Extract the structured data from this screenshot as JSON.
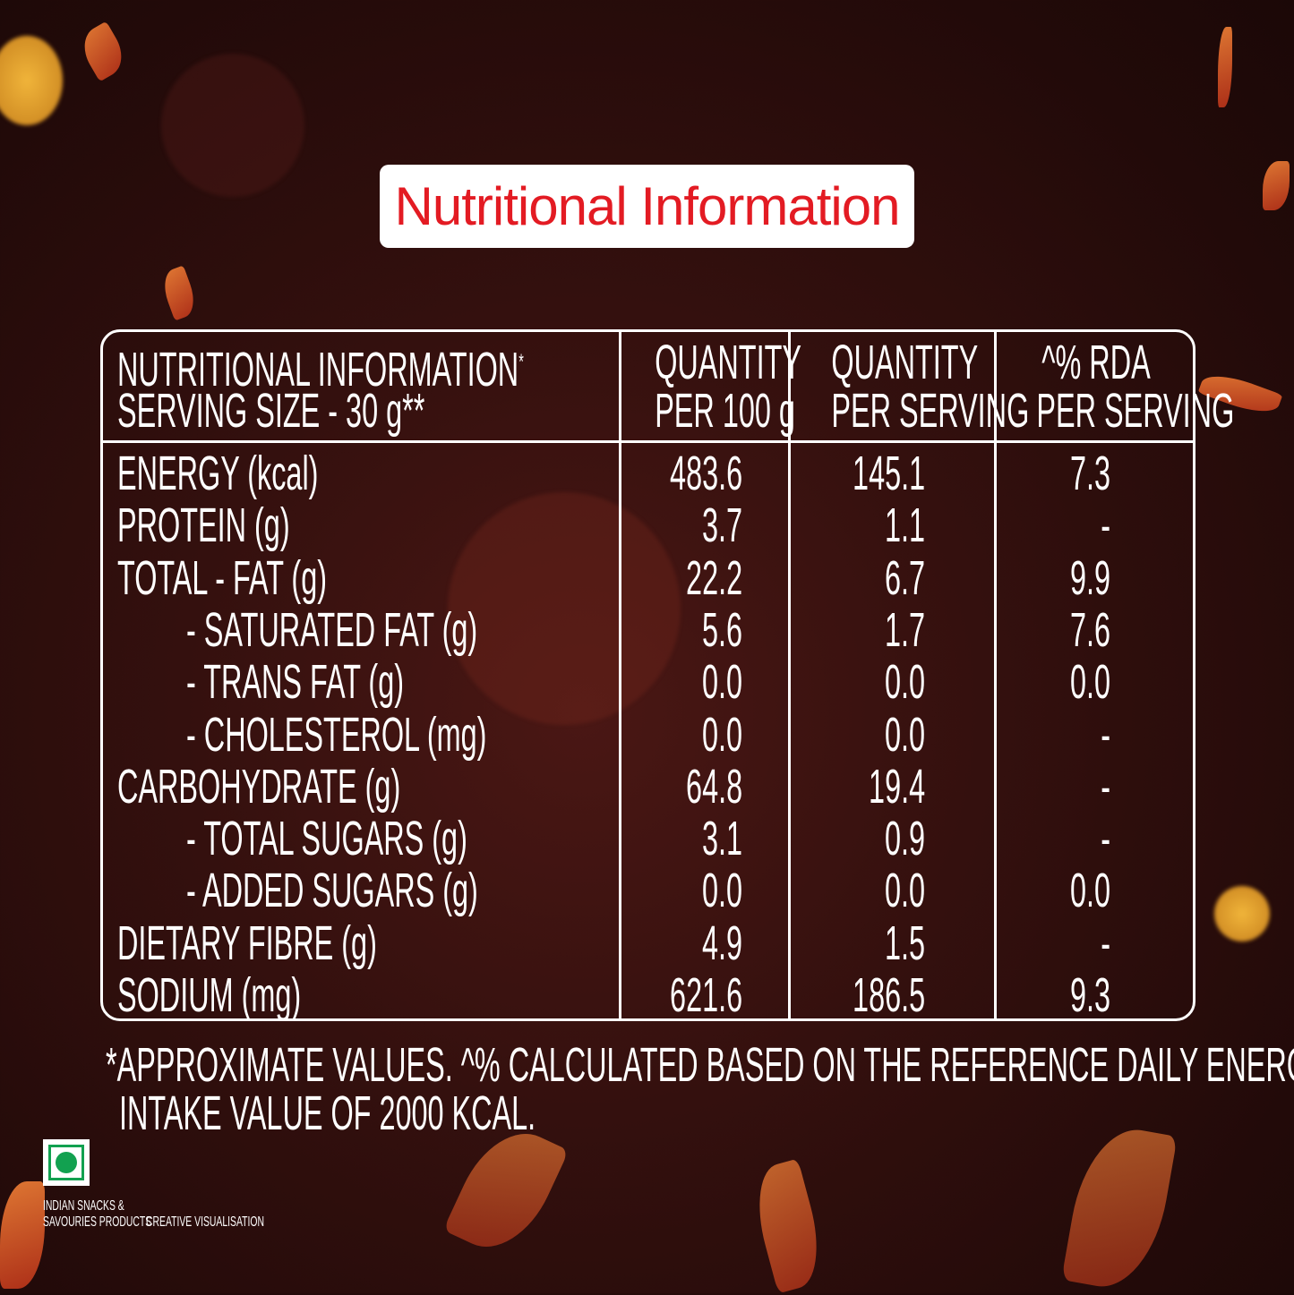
{
  "title": "Nutritional Information",
  "table": {
    "header": {
      "col1_line1": "NUTRITIONAL INFORMATION",
      "col1_sup": "*",
      "col1_line2": "SERVING SIZE - 30 g**",
      "col2_line1": "QUANTITY",
      "col2_line2": "PER 100 g",
      "col3_line1": "QUANTITY",
      "col3_line2": "PER SERVING",
      "col4_line1": "^% RDA",
      "col4_line2": "PER SERVING"
    },
    "rows": [
      {
        "label": "ENERGY (kcal)",
        "indent": false,
        "per100": "483.6",
        "serving": "145.1",
        "rda": "7.3"
      },
      {
        "label": "PROTEIN (g)",
        "indent": false,
        "per100": "3.7",
        "serving": "1.1",
        "rda": "-"
      },
      {
        "label": "TOTAL - FAT  (g)",
        "indent": false,
        "per100": "22.2",
        "serving": "6.7",
        "rda": "9.9"
      },
      {
        "label": "- SATURATED FAT (g)",
        "indent": true,
        "per100": "5.6",
        "serving": "1.7",
        "rda": "7.6"
      },
      {
        "label": "- TRANS FAT (g)",
        "indent": true,
        "per100": "0.0",
        "serving": "0.0",
        "rda": "0.0"
      },
      {
        "label": "- CHOLESTEROL (mg)",
        "indent": true,
        "per100": "0.0",
        "serving": "0.0",
        "rda": "-"
      },
      {
        "label": "CARBOHYDRATE (g)",
        "indent": false,
        "per100": "64.8",
        "serving": "19.4",
        "rda": "-"
      },
      {
        "label": "- TOTAL SUGARS (g)",
        "indent": true,
        "per100": "3.1",
        "serving": "0.9",
        "rda": "-"
      },
      {
        "label": "- ADDED SUGARS (g)",
        "indent": true,
        "per100": "0.0",
        "serving": "0.0",
        "rda": "0.0"
      },
      {
        "label": "DIETARY FIBRE (g)",
        "indent": false,
        "per100": "4.9",
        "serving": "1.5",
        "rda": "-"
      },
      {
        "label": "SODIUM (mg)",
        "indent": false,
        "per100": "621.6",
        "serving": "186.5",
        "rda": "9.3"
      }
    ]
  },
  "footnote": {
    "line1": "*APPROXIMATE VALUES. ^% CALCULATED BASED ON THE REFERENCE DAILY ENERGY",
    "line2": "INTAKE VALUE OF 2000 KCAL."
  },
  "veg_mark": {
    "color": "#12a150",
    "line1": "INDIAN SNACKS &",
    "line2": "SAVOURIES PRODUCTS"
  },
  "disclaimer": "CREATIVE VISUALISATION",
  "colors": {
    "title_text": "#e31b23",
    "background": "#2a0c0b"
  }
}
